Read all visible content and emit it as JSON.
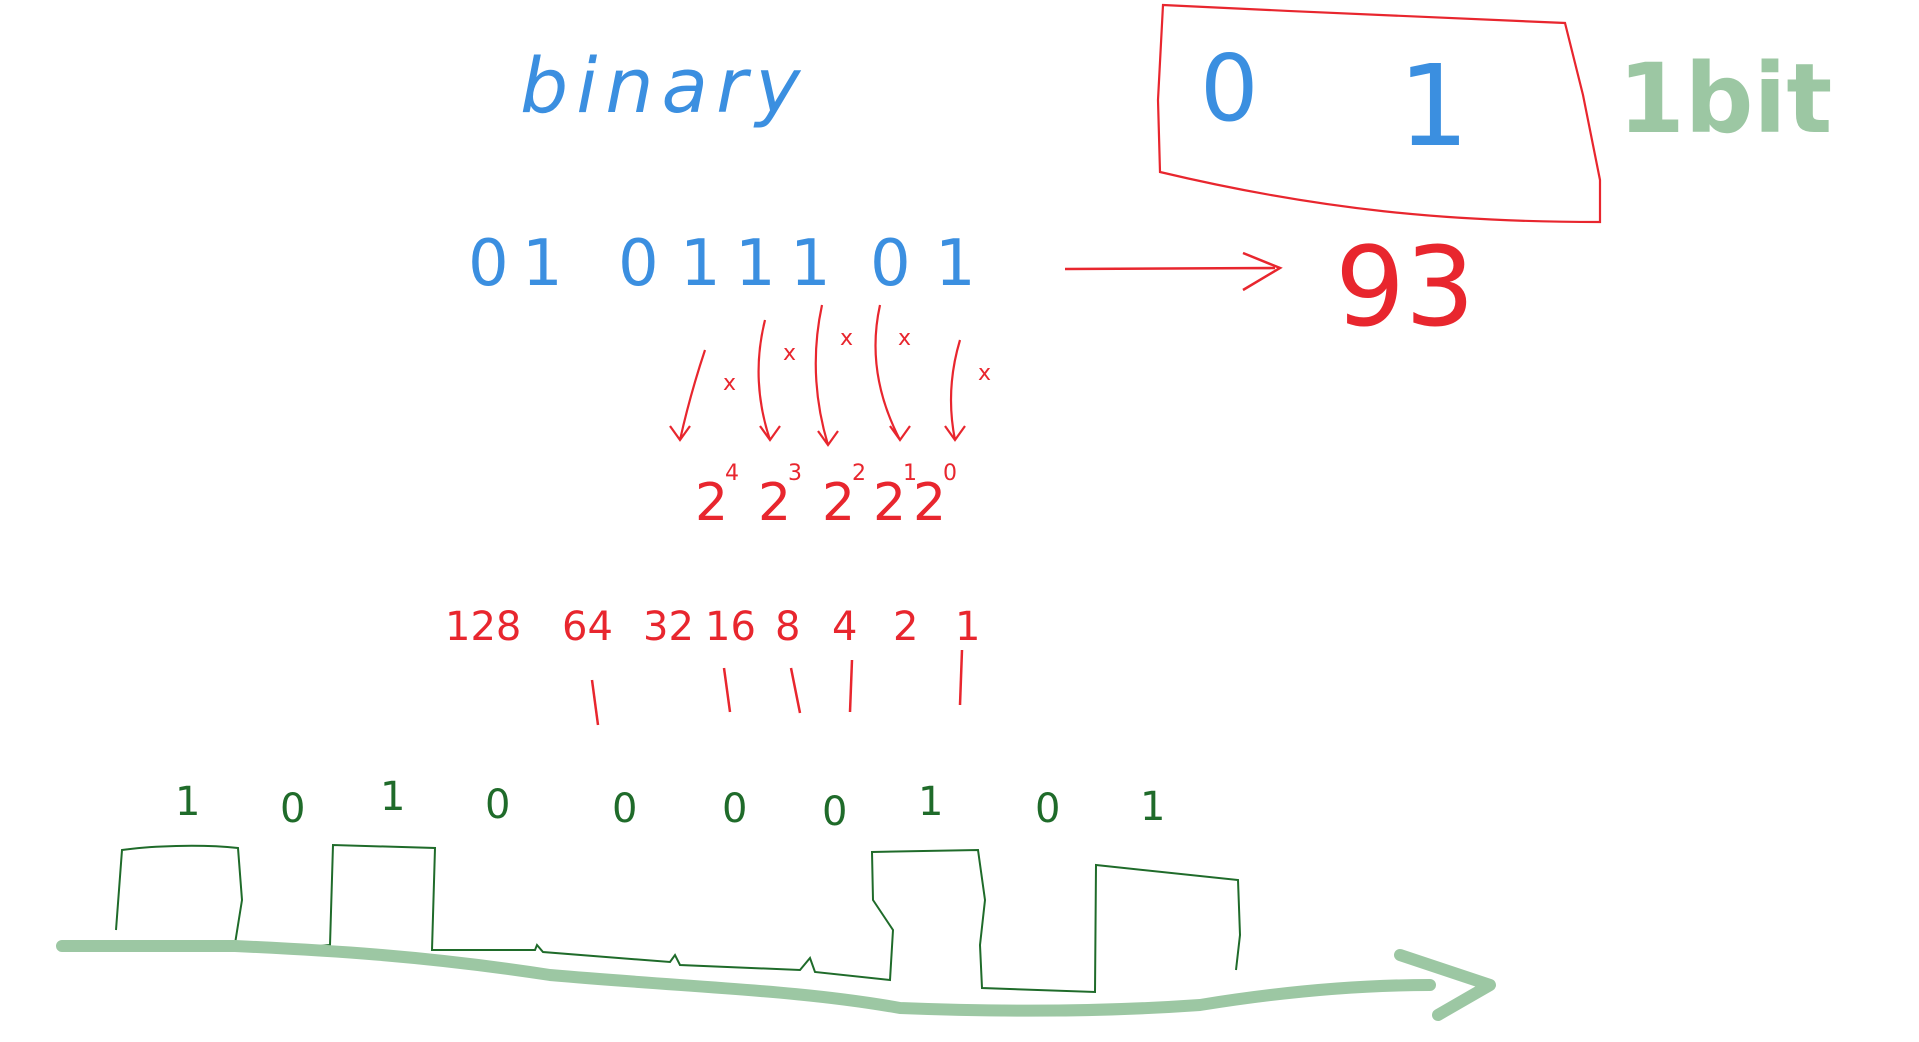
{
  "colors": {
    "blue": "#3b8fe0",
    "red": "#e8262e",
    "green_dark": "#1f6b2a",
    "green_light": "#9cc7a3"
  },
  "title": "binary",
  "bit_box": {
    "zero": "0",
    "one": "1"
  },
  "bit_label": "1bit",
  "binary_digits": [
    "0",
    "1",
    "0",
    "1",
    "1",
    "1",
    "0",
    "1"
  ],
  "result": "93",
  "powers": [
    {
      "base": "2",
      "exp": "4"
    },
    {
      "base": "2",
      "exp": "3"
    },
    {
      "base": "2",
      "exp": "2"
    },
    {
      "base": "2",
      "exp": "1"
    },
    {
      "base": "2",
      "exp": "0"
    }
  ],
  "multiply_marks": [
    "x",
    "x",
    "x",
    "x",
    "x"
  ],
  "place_values": [
    "128",
    "64",
    "32",
    "16",
    "8",
    "4",
    "2",
    "1"
  ],
  "signal_bits": [
    "1",
    "0",
    "1",
    "0",
    "0",
    "0",
    "0",
    "1",
    "0",
    "1"
  ]
}
